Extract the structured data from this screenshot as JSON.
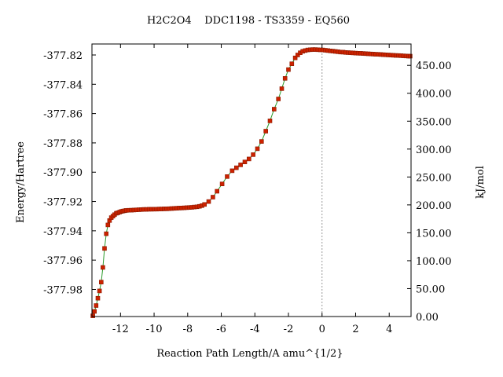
{
  "chart_data": {
    "type": "scatter",
    "title": "H2C2O4    DDC1198 - TS3359 - EQ560",
    "xlabel": "Reaction Path Length/A amu^{1/2}",
    "ylabel": "Energy/Hartree",
    "y2label": "kJ/mol",
    "xlim": [
      -13.7,
      5.3
    ],
    "ylim": [
      -377.9985,
      -377.8125
    ],
    "y2lim": [
      0,
      488.3
    ],
    "xticks": [
      -12,
      -10,
      -8,
      -6,
      -4,
      -2,
      0,
      2,
      4
    ],
    "xtick_labels": [
      "-12",
      "-10",
      "-8",
      "-6",
      "-4",
      "-2",
      "0",
      "2",
      "4"
    ],
    "yticks": [
      -377.98,
      -377.96,
      -377.94,
      -377.92,
      -377.9,
      -377.88,
      -377.86,
      -377.84,
      -377.82
    ],
    "ytick_labels": [
      "-377.98",
      "-377.96",
      "-377.94",
      "-377.92",
      "-377.90",
      "-377.88",
      "-377.86",
      "-377.84",
      "-377.82"
    ],
    "y2ticks": [
      0,
      50,
      100,
      150,
      200,
      250,
      300,
      350,
      400,
      450
    ],
    "y2tick_labels": [
      "0.00",
      "50.00",
      "100.00",
      "150.00",
      "200.00",
      "250.00",
      "300.00",
      "350.00",
      "400.00",
      "450.00"
    ],
    "vline_x": 0,
    "grid": false,
    "colors": {
      "marker": "#cc2200",
      "marker_edge": "#8b1a00",
      "line": "#2a9a2a",
      "vline": "#999999"
    },
    "series": [
      {
        "x": [
          -13.65,
          -13.55,
          -13.45,
          -13.35,
          -13.25,
          -13.15,
          -13.05,
          -12.95,
          -12.85,
          -12.75,
          -12.65,
          -12.55,
          -12.45,
          -12.35,
          -12.25,
          -12.15,
          -12.05,
          -11.95,
          -11.85,
          -11.75,
          -11.65,
          -11.5,
          -11.35,
          -11.2,
          -11.05,
          -10.9,
          -10.75,
          -10.6,
          -10.45,
          -10.3,
          -10.15,
          -10.0,
          -9.85,
          -9.7,
          -9.55,
          -9.4,
          -9.25,
          -9.1,
          -8.95,
          -8.8,
          -8.65,
          -8.5,
          -8.35,
          -8.2,
          -8.05,
          -7.9,
          -7.75,
          -7.6,
          -7.45,
          -7.3,
          -7.15,
          -7.0,
          -6.75,
          -6.5,
          -6.25,
          -5.95,
          -5.65,
          -5.35,
          -5.1,
          -4.85,
          -4.6,
          -4.35,
          -4.1,
          -3.85,
          -3.6,
          -3.35,
          -3.1,
          -2.85,
          -2.6,
          -2.4,
          -2.2,
          -2.0,
          -1.8,
          -1.6,
          -1.45,
          -1.3,
          -1.15,
          -1.0,
          -0.85,
          -0.7,
          -0.55,
          -0.4,
          -0.25,
          -0.1,
          0.05,
          0.2,
          0.35,
          0.5,
          0.65,
          0.8,
          0.95,
          1.1,
          1.25,
          1.4,
          1.55,
          1.7,
          1.85,
          2.0,
          2.15,
          2.3,
          2.45,
          2.6,
          2.75,
          2.9,
          3.05,
          3.2,
          3.35,
          3.5,
          3.65,
          3.8,
          3.95,
          4.1,
          4.25,
          4.4,
          4.55,
          4.7,
          4.85,
          5.0,
          5.15,
          5.25
        ],
        "y": [
          -377.998,
          -377.995,
          -377.991,
          -377.986,
          -377.981,
          -377.975,
          -377.965,
          -377.952,
          -377.942,
          -377.936,
          -377.933,
          -377.931,
          -377.93,
          -377.929,
          -377.928,
          -377.9277,
          -377.9272,
          -377.9268,
          -377.9265,
          -377.9263,
          -377.9261,
          -377.926,
          -377.9259,
          -377.9258,
          -377.9257,
          -377.9256,
          -377.9255,
          -377.9254,
          -377.9254,
          -377.9253,
          -377.9253,
          -377.9252,
          -377.9252,
          -377.9251,
          -377.9251,
          -377.925,
          -377.925,
          -377.9249,
          -377.9248,
          -377.9247,
          -377.9246,
          -377.9245,
          -377.9244,
          -377.9243,
          -377.9242,
          -377.9241,
          -377.924,
          -377.9238,
          -377.9236,
          -377.9233,
          -377.9228,
          -377.922,
          -377.92,
          -377.917,
          -377.913,
          -377.908,
          -377.903,
          -377.899,
          -377.897,
          -377.895,
          -377.893,
          -377.891,
          -377.888,
          -377.884,
          -377.879,
          -377.872,
          -377.865,
          -377.857,
          -377.85,
          -377.843,
          -377.836,
          -377.83,
          -377.826,
          -377.822,
          -377.82,
          -377.8185,
          -377.8175,
          -377.817,
          -377.8166,
          -377.8164,
          -377.8163,
          -377.8163,
          -377.8164,
          -377.8165,
          -377.8166,
          -377.8168,
          -377.817,
          -377.8172,
          -377.8174,
          -377.8176,
          -377.8178,
          -377.818,
          -377.8181,
          -377.8183,
          -377.8184,
          -377.8185,
          -377.8186,
          -377.8187,
          -377.8188,
          -377.8189,
          -377.819,
          -377.8191,
          -377.8192,
          -377.8193,
          -377.8194,
          -377.8195,
          -377.8196,
          -377.8197,
          -377.8198,
          -377.8199,
          -377.82,
          -377.8201,
          -377.8202,
          -377.8203,
          -377.8204,
          -377.8205,
          -377.8206,
          -377.8207,
          -377.8208,
          -377.8208
        ]
      }
    ]
  }
}
